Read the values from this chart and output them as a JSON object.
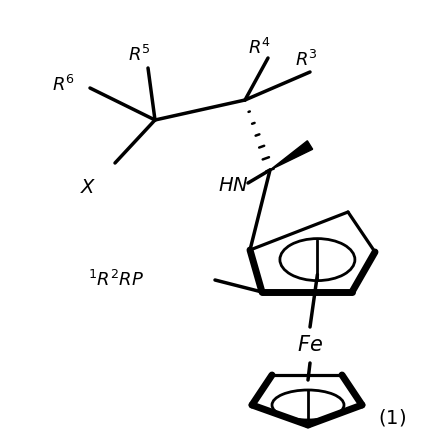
{
  "background_color": "#ffffff",
  "line_color": "#000000",
  "lw": 2.0,
  "figure_width": 4.35,
  "figure_height": 4.45,
  "dpi": 100,
  "xlim": [
    0,
    435
  ],
  "ylim": [
    0,
    445
  ]
}
